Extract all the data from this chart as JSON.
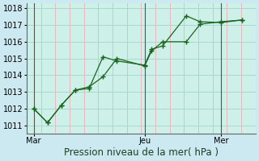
{
  "xlabel": "Pression niveau de la mer( hPa )",
  "background_color": "#cce8f0",
  "plot_bg_color": "#cdf0e8",
  "grid_color_h": "#aad8cc",
  "grid_color_v": "#e8b8c0",
  "line_color": "#1a6620",
  "ylim": [
    1010.5,
    1018.3
  ],
  "yticks": [
    1011,
    1012,
    1013,
    1014,
    1015,
    1016,
    1017,
    1018
  ],
  "xtick_labels": [
    "Mar",
    "Jeu",
    "Mer"
  ],
  "xtick_positions": [
    0.5,
    8.5,
    14.0
  ],
  "vline_positions": [
    0.5,
    8.5,
    14.0
  ],
  "xlim": [
    0.0,
    16.5
  ],
  "series1_x": [
    0.5,
    1.5,
    2.5,
    3.5,
    4.5,
    5.5,
    6.5,
    8.5,
    9.0,
    9.8,
    11.5,
    12.5,
    14.0,
    15.5
  ],
  "series1_y": [
    1012.0,
    1011.15,
    1012.2,
    1013.1,
    1013.2,
    1015.1,
    1014.85,
    1014.6,
    1015.55,
    1015.75,
    1017.55,
    1017.2,
    1017.15,
    1017.3
  ],
  "series2_x": [
    0.5,
    1.5,
    2.5,
    3.5,
    4.5,
    5.5,
    6.5,
    8.5,
    9.0,
    9.8,
    11.5,
    12.5,
    14.0,
    15.5
  ],
  "series2_y": [
    1012.0,
    1011.15,
    1012.2,
    1013.1,
    1013.3,
    1013.9,
    1015.0,
    1014.55,
    1015.45,
    1016.0,
    1016.0,
    1017.05,
    1017.2,
    1017.3
  ],
  "xlabel_fontsize": 8.5,
  "tick_fontsize": 7.0,
  "n_hgrid": 8,
  "n_vgrid": 16
}
